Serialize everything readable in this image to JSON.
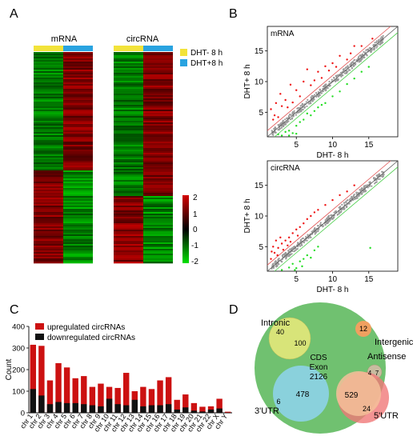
{
  "panels": {
    "A": {
      "letter": "A",
      "mrna_title": "mRNA",
      "circ_title": "circRNA"
    },
    "B": {
      "letter": "B"
    },
    "C": {
      "letter": "C"
    },
    "D": {
      "letter": "D"
    }
  },
  "legend_A": {
    "items": [
      {
        "label": "DHT- 8 h",
        "color": "#f2e33a"
      },
      {
        "label": "DHT+8 h",
        "color": "#29a3e0"
      }
    ]
  },
  "colorscale": {
    "ticks": [
      "2",
      "1",
      "0",
      "-1",
      "-2"
    ],
    "high": "#d40000",
    "mid": "#000000",
    "low": "#00e000"
  },
  "colors": {
    "up": "#cc1111",
    "down": "#111111",
    "scatter_up": "#ee1111",
    "scatter_down": "#22dd22",
    "diag": "#555555"
  },
  "chart_data": [
    {
      "type": "heatmap",
      "id": "heatmap-mrna",
      "title": "mRNA",
      "columns": [
        "DHT- 8 h",
        "DHT+8 h"
      ],
      "blocks": [
        {
          "rows_fraction": 0.56,
          "values": [
            -1.2,
            1.3
          ]
        },
        {
          "rows_fraction": 0.44,
          "values": [
            1.3,
            -1.3
          ]
        }
      ]
    },
    {
      "type": "heatmap",
      "id": "heatmap-circrna",
      "title": "circRNA",
      "columns": [
        "DHT- 8 h",
        "DHT+8 h"
      ],
      "blocks": [
        {
          "rows_fraction": 0.68,
          "values": [
            -1.2,
            1.3
          ]
        },
        {
          "rows_fraction": 0.32,
          "values": [
            1.4,
            -1.3
          ]
        }
      ]
    },
    {
      "type": "scatter",
      "id": "scatter-mrna",
      "title": "mRNA",
      "xlabel": "DHT- 8 h",
      "ylabel": "DHT+ 8 h",
      "xlim": [
        1,
        19
      ],
      "ylim": [
        1,
        19
      ],
      "xticks": [
        5,
        10,
        15
      ],
      "yticks": [
        5,
        10,
        15
      ],
      "series": [
        {
          "name": "",
          "points": [
            [
              2.2,
              6.5
            ],
            [
              2.8,
              8
            ],
            [
              3.5,
              7
            ],
            [
              4.2,
              9.5
            ],
            [
              5,
              8.6
            ],
            [
              6,
              10
            ],
            [
              6.5,
              12
            ],
            [
              7.5,
              10.2
            ],
            [
              8,
              11.6
            ],
            [
              9,
              12.5
            ],
            [
              10,
              13
            ],
            [
              11,
              14.2
            ],
            [
              12,
              13.6
            ],
            [
              13,
              15.8
            ],
            [
              2,
              4.5
            ],
            [
              1.5,
              5.5
            ],
            [
              3,
              6
            ],
            [
              2.5,
              4.2
            ],
            [
              1.8,
              3.8
            ],
            [
              3.8,
              5.8
            ],
            [
              4.5,
              6.6
            ],
            [
              5.5,
              7.6
            ],
            [
              7,
              9.4
            ],
            [
              8.5,
              10.6
            ],
            [
              9.5,
              11.8
            ],
            [
              10.5,
              12.4
            ],
            [
              12.5,
              14.6
            ],
            [
              14,
              15.8
            ],
            [
              15.5,
              17
            ]
          ]
        },
        {
          "name": "",
          "points": [
            [
              3,
              1.2
            ],
            [
              4,
              2
            ],
            [
              5,
              2.8
            ],
            [
              4.5,
              1.6
            ],
            [
              6,
              3.8
            ],
            [
              7,
              4.5
            ],
            [
              8,
              5.8
            ],
            [
              9,
              6.5
            ],
            [
              10,
              7.6
            ],
            [
              11,
              8.4
            ],
            [
              12,
              9.6
            ],
            [
              13,
              10.5
            ],
            [
              14,
              11.6
            ],
            [
              15,
              12.4
            ],
            [
              3.5,
              1.8
            ],
            [
              5.5,
              3.4
            ],
            [
              6.5,
              4.8
            ],
            [
              7.5,
              5.2
            ],
            [
              2.5,
              1.4
            ],
            [
              8.5,
              6.2
            ],
            [
              4,
              1.2
            ],
            [
              5,
              1.5
            ]
          ]
        }
      ]
    },
    {
      "type": "scatter",
      "id": "scatter-circrna",
      "title": "circRNA",
      "xlabel": "DHT- 8 h",
      "ylabel": "DHT+ 8 h",
      "xlim": [
        1,
        19
      ],
      "ylim": [
        1,
        19
      ],
      "xticks": [
        5,
        10,
        15
      ],
      "yticks": [
        5,
        10,
        15
      ],
      "series": [
        {
          "name": "",
          "points": [
            [
              1.5,
              3
            ],
            [
              2,
              4
            ],
            [
              2.5,
              4.8
            ],
            [
              3,
              5.5
            ],
            [
              3.5,
              6
            ],
            [
              4,
              6.5
            ],
            [
              4.5,
              7.2
            ],
            [
              5,
              7.8
            ],
            [
              5.5,
              8.2
            ],
            [
              6,
              8.8
            ],
            [
              6.5,
              9.5
            ],
            [
              7,
              10
            ],
            [
              7.5,
              10.6
            ],
            [
              8,
              11
            ],
            [
              9,
              11.8
            ],
            [
              10,
              12.6
            ],
            [
              11,
              13.4
            ],
            [
              12,
              14
            ],
            [
              13,
              15
            ],
            [
              1.8,
              5
            ],
            [
              2.2,
              6
            ],
            [
              2.8,
              6.5
            ],
            [
              3.2,
              4.5
            ],
            [
              1.6,
              4.2
            ],
            [
              3.8,
              5.2
            ],
            [
              4.2,
              5.8
            ],
            [
              2.4,
              3.6
            ],
            [
              5.2,
              6.8
            ]
          ]
        },
        {
          "name": "",
          "points": [
            [
              3,
              1.2
            ],
            [
              4,
              1.6
            ],
            [
              4.5,
              2.2
            ],
            [
              5,
              1.5
            ],
            [
              5.5,
              2.6
            ],
            [
              6,
              3
            ],
            [
              6.5,
              3.6
            ],
            [
              7,
              3.2
            ],
            [
              7.5,
              4.4
            ],
            [
              8,
              5
            ],
            [
              4.8,
              1.2
            ],
            [
              5.8,
              1.8
            ],
            [
              15.2,
              4.8
            ]
          ]
        }
      ]
    },
    {
      "type": "bar",
      "id": "bar-chromosome",
      "stacked": true,
      "ylabel": "Count",
      "xlabel": "",
      "ylim": [
        0,
        400
      ],
      "yticks": [
        0,
        100,
        200,
        300,
        400
      ],
      "categories": [
        "chr 1",
        "chr 2",
        "chr 3",
        "chr 4",
        "chr 5",
        "chr 6",
        "chr 7",
        "chr 8",
        "chr 9",
        "chr 10",
        "chr 11",
        "chr 12",
        "chr 13",
        "chr 14",
        "chr 15",
        "chr 16",
        "chr 17",
        "chr 18",
        "chr 19",
        "chr 20",
        "chr 21",
        "chr 22",
        "chr X",
        "chr Y"
      ],
      "series": [
        {
          "name": "upregulated circRNAs",
          "values": [
            315,
            310,
            150,
            230,
            210,
            160,
            170,
            120,
            135,
            120,
            115,
            185,
            100,
            120,
            110,
            150,
            165,
            60,
            85,
            45,
            28,
            30,
            65,
            5
          ]
        },
        {
          "name": "downregulated circRNAs",
          "values": [
            110,
            80,
            40,
            50,
            45,
            45,
            40,
            35,
            30,
            65,
            40,
            35,
            60,
            30,
            35,
            35,
            40,
            15,
            25,
            10,
            6,
            15,
            20,
            1
          ]
        }
      ]
    },
    {
      "type": "venn",
      "id": "venn-genomic-origin",
      "sets": [
        {
          "label": "CDS\nExon",
          "value": "2126",
          "color": "#5cb85c"
        },
        {
          "label": "Intronic",
          "value": "100",
          "color": "#eaea7a"
        },
        {
          "label": "Intergenic",
          "value": "12",
          "color": "#f0a060"
        },
        {
          "label": "Antisense",
          "value": "7",
          "color": "#c8bca0"
        },
        {
          "label": "3'UTR",
          "value": "478",
          "color": "#8ed3ee"
        },
        {
          "label": "5'UTR",
          "value": "24",
          "color": "#f07878"
        }
      ],
      "overlap_values": {
        "intronic_only": "40",
        "antisense_only": "4",
        "utr3_only": "6",
        "cds_5utr": "529"
      }
    }
  ]
}
